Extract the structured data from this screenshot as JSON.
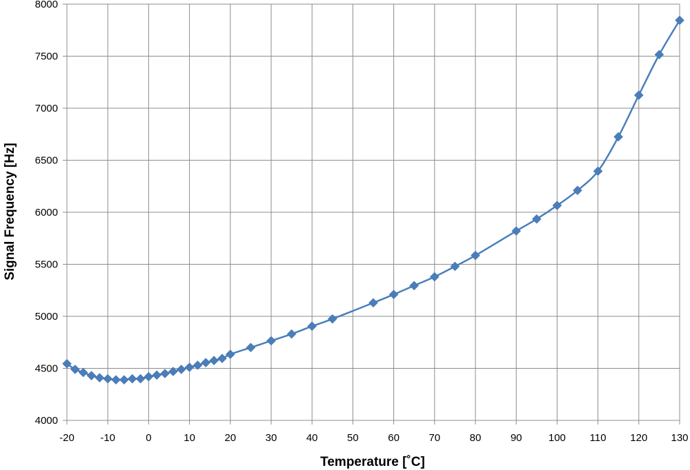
{
  "chart_data": {
    "type": "line",
    "xlabel": "Temperature [˚C]",
    "ylabel": "Signal Frequency [Hz]",
    "xlim": [
      -20,
      130
    ],
    "ylim": [
      4000,
      8000
    ],
    "xticks": [
      -20,
      -10,
      0,
      10,
      20,
      30,
      40,
      50,
      60,
      70,
      80,
      90,
      100,
      110,
      120,
      130
    ],
    "yticks": [
      4000,
      4500,
      5000,
      5500,
      6000,
      6500,
      7000,
      7500,
      8000
    ],
    "grid": true,
    "legend": "none",
    "series": [
      {
        "color": "#4a7ebb",
        "marker": "diamond",
        "x": [
          -20,
          -18,
          -16,
          -14,
          -12,
          -10,
          -8,
          -6,
          -4,
          -2,
          0,
          2,
          4,
          6,
          8,
          10,
          12,
          14,
          16,
          18,
          20,
          25,
          30,
          35,
          40,
          45,
          55,
          60,
          65,
          70,
          75,
          80,
          90,
          95,
          100,
          105,
          110,
          115,
          120,
          125,
          130
        ],
        "y": [
          4545,
          4490,
          4460,
          4430,
          4410,
          4400,
          4390,
          4390,
          4400,
          4400,
          4420,
          4435,
          4450,
          4470,
          4490,
          4510,
          4530,
          4555,
          4575,
          4595,
          4635,
          4700,
          4765,
          4830,
          4905,
          4975,
          5130,
          5210,
          5295,
          5380,
          5480,
          5585,
          5820,
          5935,
          6065,
          6210,
          6395,
          6725,
          7125,
          7515,
          7845
        ]
      }
    ]
  }
}
